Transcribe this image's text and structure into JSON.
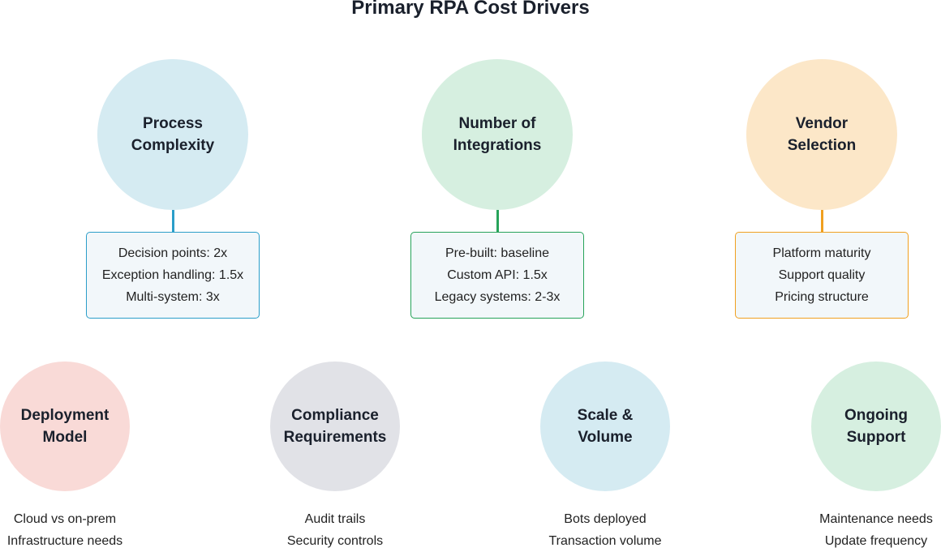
{
  "title": "Primary RPA Cost Drivers",
  "top": [
    {
      "label": "Process Complexity",
      "l1": "Process",
      "l2": "Complexity",
      "fill": "#d5ebf2",
      "accent": "#2b9ec9",
      "items": [
        "Decision points: 2x",
        "Exception handling: 1.5x",
        "Multi-system: 3x"
      ]
    },
    {
      "label": "Number of Integrations",
      "l1": "Number of",
      "l2": "Integrations",
      "fill": "#d6efe0",
      "accent": "#27a35a",
      "items": [
        "Pre-built: baseline",
        "Custom API: 1.5x",
        "Legacy systems: 2-3x"
      ]
    },
    {
      "label": "Vendor Selection",
      "l1": "Vendor",
      "l2": "Selection",
      "fill": "#fce7c8",
      "accent": "#f0a020",
      "items": [
        "Platform maturity",
        "Support quality",
        "Pricing structure"
      ]
    }
  ],
  "bottom": [
    {
      "l1": "Deployment",
      "l2": "Model",
      "fill": "#f9dad7",
      "items": [
        "Cloud vs on-prem",
        "Infrastructure needs"
      ]
    },
    {
      "l1": "Compliance",
      "l2": "Requirements",
      "fill": "#e1e2e7",
      "items": [
        "Audit trails",
        "Security controls"
      ]
    },
    {
      "l1": "Scale &",
      "l2": "Volume",
      "fill": "#d5ebf2",
      "items": [
        "Bots deployed",
        "Transaction volume"
      ]
    },
    {
      "l1": "Ongoing",
      "l2": "Support",
      "fill": "#d6efe0",
      "items": [
        "Maintenance needs",
        "Update frequency"
      ]
    }
  ]
}
